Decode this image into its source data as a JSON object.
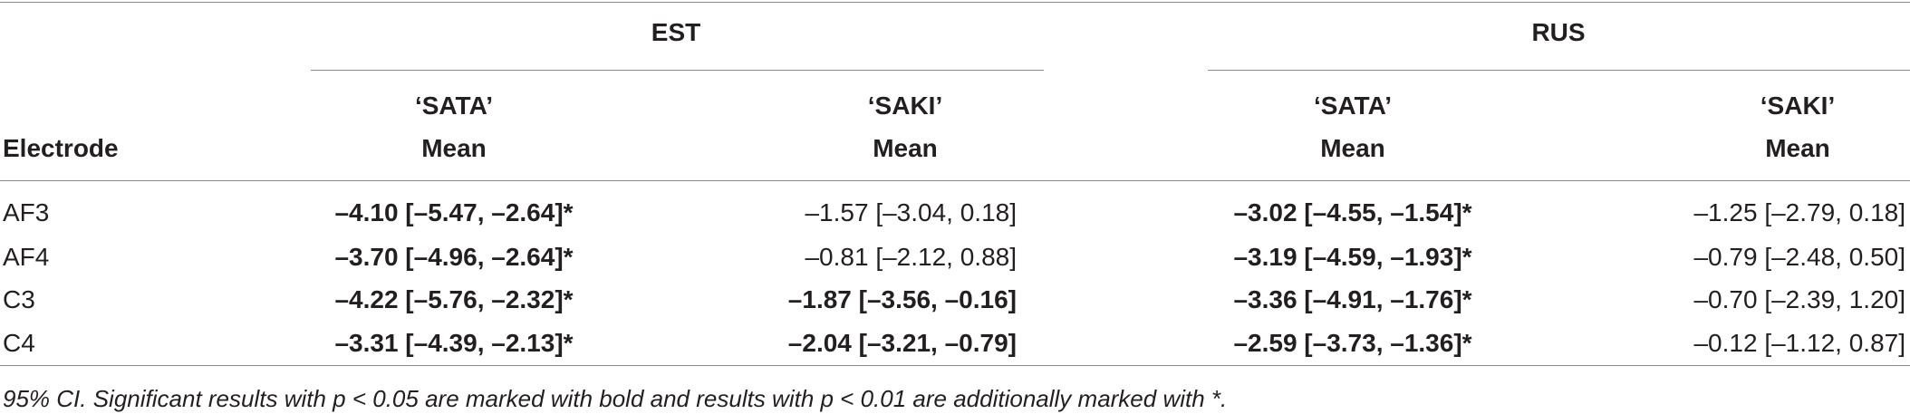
{
  "table": {
    "groups": [
      "EST",
      "RUS"
    ],
    "row_header": "Electrode",
    "columns": [
      {
        "word": "‘SATA’",
        "stat": "Mean"
      },
      {
        "word": "‘SAKI’",
        "stat": "Mean"
      },
      {
        "word": "‘SATA’",
        "stat": "Mean"
      },
      {
        "word": "‘SAKI’",
        "stat": "Mean"
      }
    ],
    "rows": [
      {
        "electrode": "AF3",
        "cells": [
          "–4.10 [–5.47, –2.64]*",
          "–1.57 [–3.04, 0.18]",
          "–3.02 [–4.55, –1.54]*",
          "–1.25 [–2.79, 0.18]"
        ],
        "bold": [
          true,
          false,
          true,
          false
        ]
      },
      {
        "electrode": "AF4",
        "cells": [
          "–3.70 [–4.96, –2.64]*",
          "–0.81 [–2.12, 0.88]",
          "–3.19 [–4.59, –1.93]*",
          "–0.79 [–2.48, 0.50]"
        ],
        "bold": [
          true,
          false,
          true,
          false
        ]
      },
      {
        "electrode": "C3",
        "cells": [
          "–4.22 [–5.76, –2.32]*",
          "–1.87 [–3.56, –0.16]",
          "–3.36 [–4.91, –1.76]*",
          "–0.70 [–2.39, 1.20]"
        ],
        "bold": [
          true,
          true,
          true,
          false
        ]
      },
      {
        "electrode": "C4",
        "cells": [
          "–3.31 [–4.39, –2.13]*",
          "–2.04 [–3.21, –0.79]",
          "–2.59 [–3.73, –1.36]*",
          "–0.12 [–1.12, 0.87]"
        ],
        "bold": [
          true,
          true,
          true,
          false
        ]
      }
    ],
    "footnote": "95% CI. Significant results with p < 0.05 are marked with bold and results with p < 0.01 are additionally marked with *."
  }
}
